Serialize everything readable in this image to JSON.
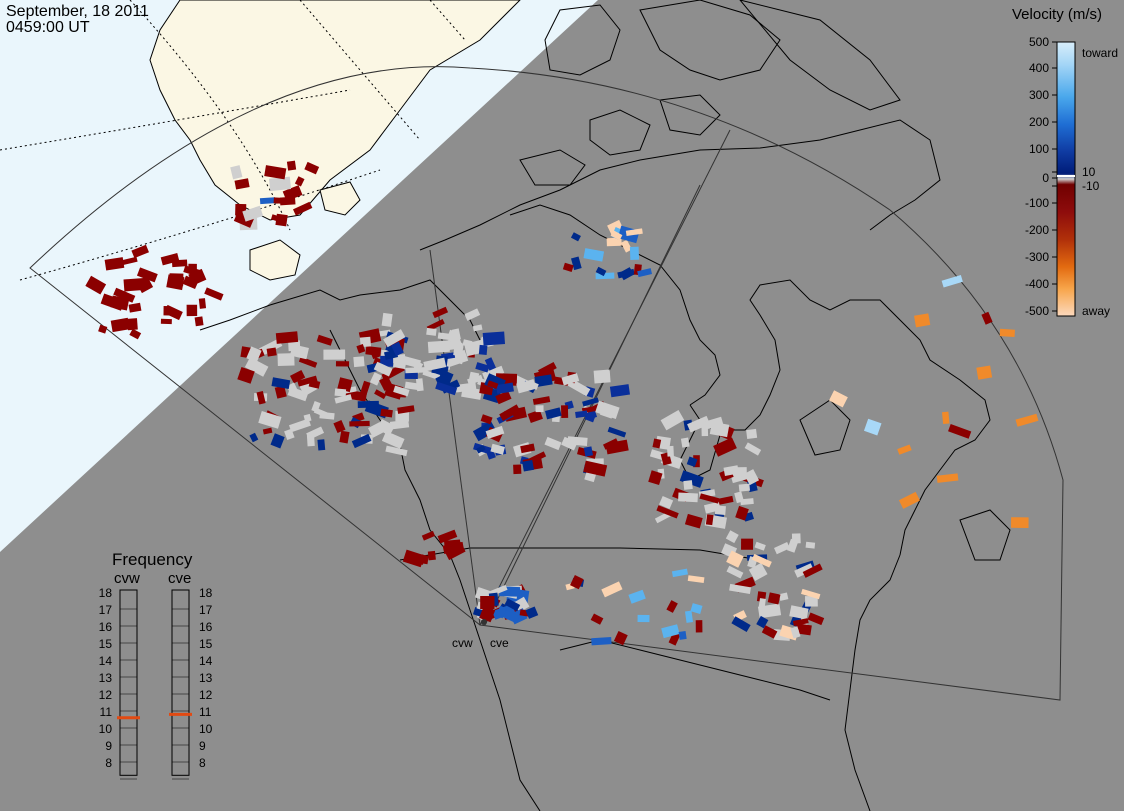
{
  "header": {
    "date": "September, 18 2011",
    "time": "0459:00 UT"
  },
  "colors": {
    "daylight_ocean": "#eaf6fc",
    "daylight_land": "#fbf7e4",
    "night_shade": "#8e8e8e",
    "ground_scatter": "#cfcfcf",
    "away_strong": "#8b0000",
    "toward_strong": "#002a8a"
  },
  "velocity_legend": {
    "title": "Velocity (m/s)",
    "ticks": [
      "500",
      "400",
      "300",
      "200",
      "100",
      "10",
      "0",
      "-10",
      "-100",
      "-200",
      "-300",
      "-400",
      "-500"
    ],
    "toward_label": "toward",
    "away_label": "away",
    "stops": [
      "#d6ecfb",
      "#9fd3f5",
      "#5bb3ef",
      "#2f8ce0",
      "#1d5fc4",
      "#0f37a0",
      "#002080",
      "#cfcfcf",
      "#7a0000",
      "#8e0d0d",
      "#a0220a",
      "#c0400a",
      "#e06a10",
      "#f9a040",
      "#fbd3b0"
    ]
  },
  "frequency_legend": {
    "title": "Frequency",
    "left_label": "cvw",
    "right_label": "cve",
    "ticks": [
      "18",
      "17",
      "16",
      "15",
      "14",
      "13",
      "12",
      "11",
      "10",
      "9",
      "8"
    ],
    "cvw_mhz": 10.6,
    "cve_mhz": 10.8,
    "marker_color": "#e24a12"
  },
  "radars": {
    "cvw_label": "cvw",
    "cve_label": "cve"
  }
}
